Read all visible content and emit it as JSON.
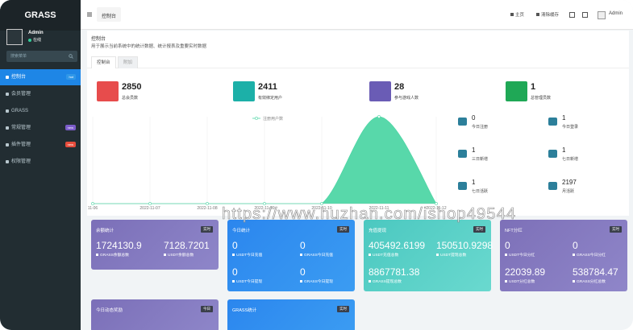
{
  "sidebar": {
    "logo": "GRASS",
    "user": {
      "name": "Admin",
      "status": "在线"
    },
    "search_placeholder": "搜索菜单",
    "menu": [
      {
        "label": "控制台",
        "badge": "hot"
      },
      {
        "label": "会员管理"
      },
      {
        "label": "GRASS"
      },
      {
        "label": "常规管理",
        "badge": "new"
      },
      {
        "label": "插件管理",
        "badge": "new"
      },
      {
        "label": "权限管理"
      }
    ]
  },
  "navbar": {
    "tab": "控制台",
    "links": [
      "主页",
      "清除缓存"
    ],
    "user": "Admin"
  },
  "header": {
    "title": "控制台",
    "description": "用于展示当前系统中的统计数据、统计报表及重要实时数据",
    "tabs": [
      "控制台",
      "附加"
    ]
  },
  "stats": [
    {
      "value": 2850,
      "label": "总会员数"
    },
    {
      "value": 2411,
      "label": "有效绑定用户"
    },
    {
      "value": 28,
      "label": "参与游戏人数"
    },
    {
      "value": 1,
      "label": "总管理员数"
    }
  ],
  "chart_data": {
    "type": "area",
    "legend": "注册用户数",
    "categories": [
      "11-06",
      "2022-11-07",
      "2022-11-08",
      "2022-11-09",
      "2022-11-10",
      "2022-11-11",
      "2022-11-12"
    ],
    "values": [
      0,
      0,
      0,
      0,
      0,
      1,
      0
    ],
    "ylim": [
      0,
      1
    ],
    "color": "#4fd6a5"
  },
  "mini_stats": [
    {
      "value": 0,
      "label": "今日注册"
    },
    {
      "value": 1,
      "label": "今日登录"
    },
    {
      "value": 1,
      "label": "三日新增"
    },
    {
      "value": 1,
      "label": "七日新增"
    },
    {
      "value": 1,
      "label": "七日活跃"
    },
    {
      "value": 2197,
      "label": "月活跃"
    }
  ],
  "cards": [
    {
      "title": "余额统计",
      "badge": "实时",
      "rows": [
        [
          {
            "value": 1724130.9,
            "label": "GRASS余额总数"
          },
          {
            "value": 7128.7201,
            "label": "USDT余额总数"
          }
        ]
      ]
    },
    {
      "title": "今日统计",
      "badge": "实时",
      "rows": [
        [
          {
            "value": 0,
            "label": "USDT今日充值"
          },
          {
            "value": 0,
            "label": "GRASS今日充值"
          }
        ],
        [
          {
            "value": 0,
            "label": "USDT今日提现"
          },
          {
            "value": 0,
            "label": "GRASS今日提现"
          }
        ]
      ]
    },
    {
      "title": "充值提现",
      "badge": "实时",
      "rows": [
        [
          {
            "value": 405492.6199,
            "label": "USDT充值总数"
          },
          {
            "value": 150510.9298,
            "label": "USDT提现总数"
          }
        ],
        [
          {
            "value": 8867781.38,
            "label": "GRASS提现总数"
          }
        ]
      ]
    },
    {
      "title": "NFT分红",
      "badge": "实时",
      "rows": [
        [
          {
            "value": 0,
            "label": "USDT今日分红"
          },
          {
            "value": 0,
            "label": "GRASS今日分红"
          }
        ],
        [
          {
            "value": 22039.89,
            "label": "USDT分红总数"
          },
          {
            "value": 538784.47,
            "label": "GRASS分红总数"
          }
        ]
      ]
    },
    {
      "title": "今日动态奖励",
      "badge": "今日",
      "rows": []
    },
    {
      "title": "GRASS统计",
      "badge": "实时",
      "rows": []
    }
  ],
  "watermark": "https://www.huzhan.com/ishop49544"
}
